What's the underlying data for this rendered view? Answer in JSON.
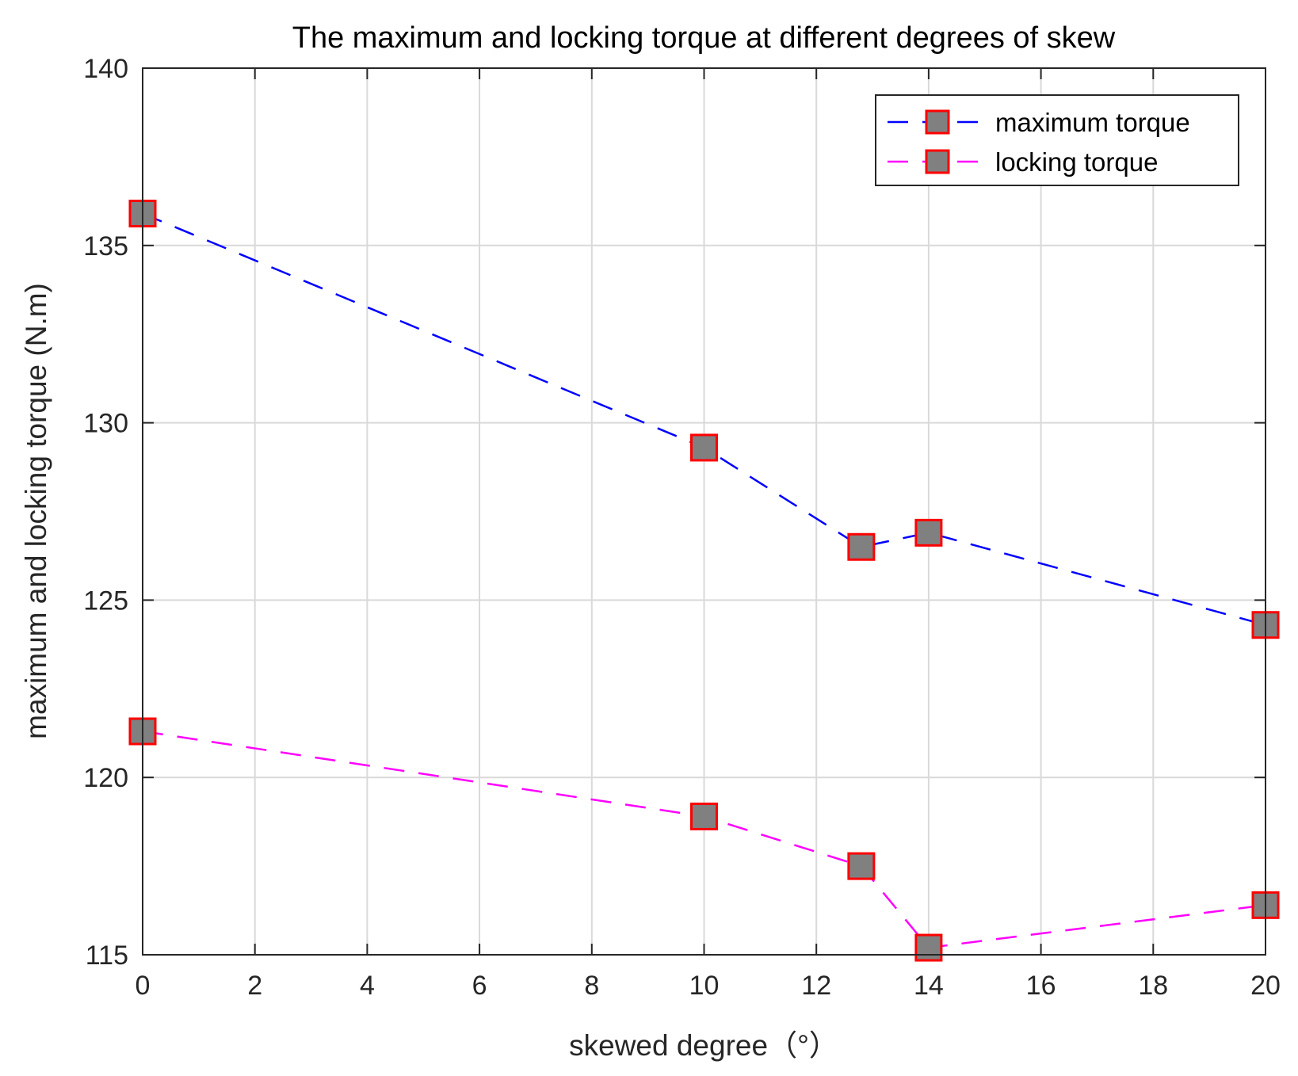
{
  "chart_data": {
    "type": "line",
    "title": "The maximum and locking torque at different degrees of skew",
    "xlabel": "skewed degree（°）",
    "ylabel": "maximum and locking torque (N.m)",
    "xlim": [
      0,
      20
    ],
    "ylim": [
      115,
      140
    ],
    "xticks": [
      0,
      2,
      4,
      6,
      8,
      10,
      12,
      14,
      16,
      18,
      20
    ],
    "yticks": [
      115,
      120,
      125,
      130,
      135,
      140
    ],
    "grid": true,
    "legend_position": "top-right",
    "series": [
      {
        "name": "maximum torque",
        "color": "#0000ff",
        "line_style": "dashed",
        "marker": "square",
        "marker_face": "#808080",
        "marker_edge": "#ff0000",
        "x": [
          0,
          10,
          12.8,
          14,
          20
        ],
        "y": [
          135.9,
          129.3,
          126.5,
          126.9,
          124.3
        ]
      },
      {
        "name": "locking torque",
        "color": "#ff00ff",
        "line_style": "dashed",
        "marker": "square",
        "marker_face": "#808080",
        "marker_edge": "#ff0000",
        "x": [
          0,
          10,
          12.8,
          14,
          20
        ],
        "y": [
          121.3,
          118.9,
          117.5,
          115.2,
          116.4
        ]
      }
    ]
  }
}
